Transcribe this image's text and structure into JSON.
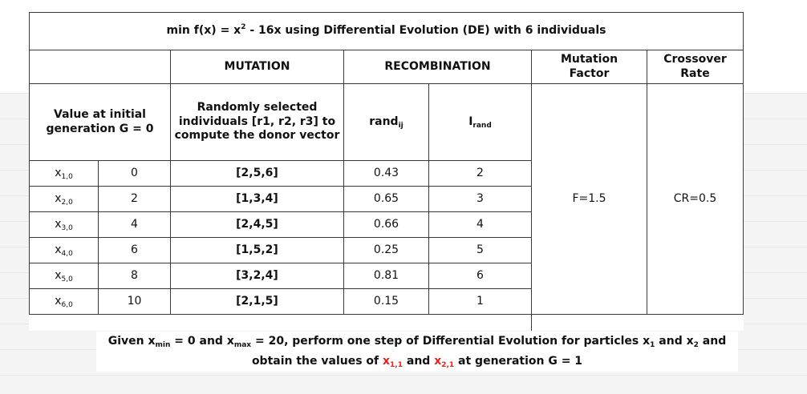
{
  "title": {
    "prefix": "min f(x) = x",
    "exp": "2",
    "suffix": " - 16x using Differential Evolution (DE) with 6 individuals"
  },
  "headers": {
    "mutation": "MUTATION",
    "recombination": "RECOMBINATION",
    "mutation_factor_l1": "Mutation",
    "mutation_factor_l2": "Factor",
    "crossover_l1": "Crossover",
    "crossover_l2": "Rate",
    "initial_l1": "Value at initial",
    "initial_l2": "generation G = 0",
    "random_l1": "Randomly selected",
    "random_l2": "individuals [r1, r2, r3] to",
    "random_l3": "compute the donor vector",
    "rand_main": "rand",
    "rand_sub": "ij",
    "irand_main": "I",
    "irand_sub": "rand"
  },
  "rows": [
    {
      "x": "x",
      "sub": "1,0",
      "value": "0",
      "selected": "[2,5,6]",
      "rand": "0.43",
      "irand": "2"
    },
    {
      "x": "x",
      "sub": "2,0",
      "value": "2",
      "selected": "[1,3,4]",
      "rand": "0.65",
      "irand": "3"
    },
    {
      "x": "x",
      "sub": "3,0",
      "value": "4",
      "selected": "[2,4,5]",
      "rand": "0.66",
      "irand": "4"
    },
    {
      "x": "x",
      "sub": "4,0",
      "value": "6",
      "selected": "[1,5,2]",
      "rand": "0.25",
      "irand": "5"
    },
    {
      "x": "x",
      "sub": "5,0",
      "value": "8",
      "selected": "[3,2,4]",
      "rand": "0.81",
      "irand": "6"
    },
    {
      "x": "x",
      "sub": "6,0",
      "value": "10",
      "selected": "[2,1,5]",
      "rand": "0.15",
      "irand": "1"
    }
  ],
  "params": {
    "F": "F=1.5",
    "CR": "CR=0.5"
  },
  "note": {
    "l1_a": "Given x",
    "l1_sub_min": "min",
    "l1_b": " = 0 and x",
    "l1_sub_max": "max",
    "l1_c": " = 20, perform one step of Differential Evolution for particles x",
    "l1_sub_1": "1",
    "l1_d": " and x",
    "l1_sub_2": "2",
    "l1_e": " and",
    "l2_a": "obtain the values of ",
    "l2_x1": "x",
    "l2_x1_sub": "1,1",
    "l2_b": " and ",
    "l2_x2": "x",
    "l2_x2_sub": "2,1",
    "l2_c": " at generation G = 1"
  },
  "colors": {
    "highlight": "#e8211a",
    "border": "#3a3a3a"
  }
}
